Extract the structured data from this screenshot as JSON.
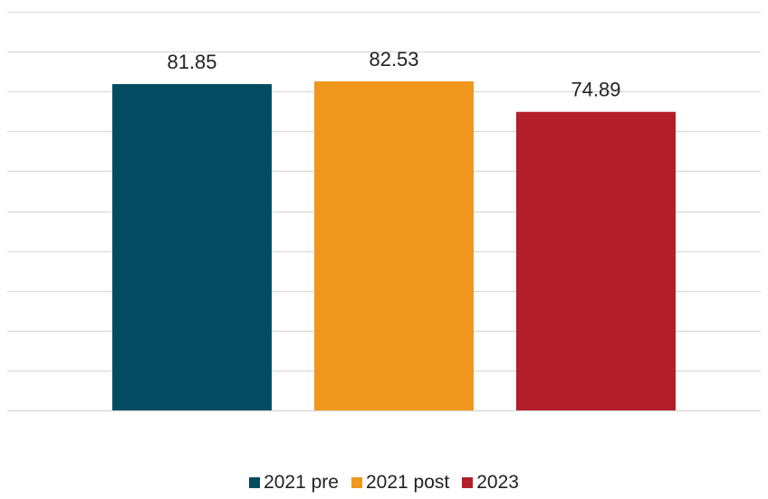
{
  "chart_data": {
    "type": "bar",
    "categories": [
      "2021 pre",
      "2021 post",
      "2023"
    ],
    "values": [
      81.85,
      82.53,
      74.89
    ],
    "colors": [
      "#024b60",
      "#f0981e",
      "#b21f29"
    ],
    "data_labels": [
      "81.85",
      "82.53",
      "74.89"
    ],
    "legend": {
      "position": "bottom",
      "entries": [
        "2021 pre",
        "2021 post",
        "2023"
      ]
    },
    "ylim": [
      0,
      100
    ],
    "grid": true,
    "gridline_step": 10,
    "title": "",
    "xlabel": "",
    "ylabel": ""
  }
}
